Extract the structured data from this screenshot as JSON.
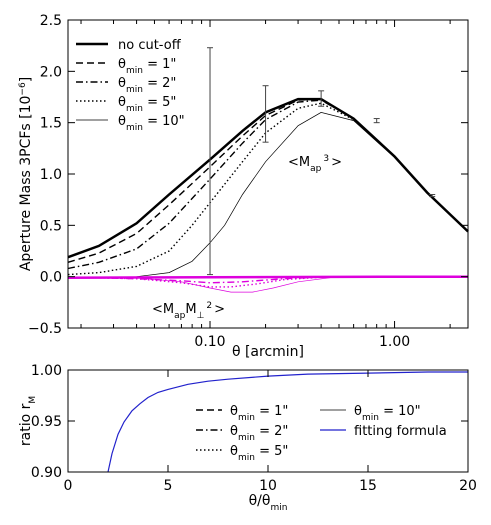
{
  "chart_data": [
    {
      "type": "line",
      "xlabel": "θ [arcmin]",
      "ylabel": "Aperture Mass 3PCFs [10",
      "ylabel_exp": "−6",
      "ylabel_end": "]",
      "xscale": "log",
      "xlim": [
        0.017,
        2.5
      ],
      "ylim": [
        -0.5,
        2.5
      ],
      "xticks": [
        {
          "v": 0.1,
          "label": "0.10"
        },
        {
          "v": 1.0,
          "label": "1.00"
        }
      ],
      "yticks": [
        {
          "v": -0.5,
          "label": "−0.5"
        },
        {
          "v": 0.0,
          "label": "0.0"
        },
        {
          "v": 0.5,
          "label": "0.5"
        },
        {
          "v": 1.0,
          "label": "1.0"
        },
        {
          "v": 1.5,
          "label": "1.5"
        },
        {
          "v": 2.0,
          "label": "2.0"
        },
        {
          "v": 2.5,
          "label": "2.5"
        }
      ],
      "legend_position": "top-left",
      "annotations": [
        {
          "base": "<M",
          "sub": "ap",
          "sup": "3",
          "end": ">"
        },
        {
          "base": "<M",
          "sub": "ap",
          "mid": "M",
          "sub2": "⊥",
          "sup": "2",
          "end": ">"
        }
      ],
      "series": [
        {
          "name": "no cut-off",
          "style": "solid-thick",
          "color": "#000000",
          "x": [
            0.017,
            0.025,
            0.04,
            0.06,
            0.1,
            0.15,
            0.2,
            0.3,
            0.4,
            0.6,
            1.0,
            1.5,
            2.5
          ],
          "y": [
            0.19,
            0.3,
            0.52,
            0.8,
            1.14,
            1.42,
            1.6,
            1.73,
            1.73,
            1.54,
            1.17,
            0.82,
            0.44
          ]
        },
        {
          "name": "θmin = 1\"",
          "label_main": "θ",
          "label_sub": "min",
          "label_val": " = 1\"",
          "style": "dashed",
          "color": "#000000",
          "x": [
            0.017,
            0.025,
            0.04,
            0.06,
            0.1,
            0.15,
            0.2,
            0.3,
            0.4,
            0.6,
            1.0,
            1.5,
            2.5
          ],
          "y": [
            0.14,
            0.23,
            0.42,
            0.7,
            1.07,
            1.37,
            1.57,
            1.72,
            1.73,
            1.54,
            1.17,
            0.82,
            0.44
          ]
        },
        {
          "name": "θmin = 2\"",
          "label_main": "θ",
          "label_sub": "min",
          "label_val": " = 2\"",
          "style": "dashdot",
          "color": "#000000",
          "x": [
            0.017,
            0.025,
            0.04,
            0.06,
            0.1,
            0.15,
            0.2,
            0.3,
            0.4,
            0.6,
            1.0,
            1.5,
            2.5
          ],
          "y": [
            0.08,
            0.14,
            0.27,
            0.52,
            0.95,
            1.3,
            1.53,
            1.7,
            1.72,
            1.54,
            1.17,
            0.82,
            0.44
          ]
        },
        {
          "name": "θmin = 5\"",
          "label_main": "θ",
          "label_sub": "min",
          "label_val": " = 5\"",
          "style": "dotted",
          "color": "#000000",
          "x": [
            0.017,
            0.025,
            0.04,
            0.06,
            0.08,
            0.1,
            0.15,
            0.2,
            0.3,
            0.4,
            0.6,
            1.0,
            1.5,
            2.5
          ],
          "y": [
            0.02,
            0.04,
            0.1,
            0.25,
            0.5,
            0.72,
            1.12,
            1.4,
            1.64,
            1.69,
            1.53,
            1.17,
            0.82,
            0.44
          ]
        },
        {
          "name": "θmin = 10\"",
          "label_main": "θ",
          "label_sub": "min",
          "label_val": " = 10\"",
          "style": "thin",
          "color": "#000000",
          "x": [
            0.04,
            0.06,
            0.08,
            0.1,
            0.12,
            0.15,
            0.2,
            0.3,
            0.4,
            0.6,
            1.0,
            1.5,
            2.5
          ],
          "y": [
            0.0,
            0.04,
            0.15,
            0.33,
            0.5,
            0.8,
            1.12,
            1.47,
            1.6,
            1.52,
            1.16,
            0.81,
            0.44
          ]
        },
        {
          "name": "<MapM⊥²> no cut-off",
          "style": "solid-thick",
          "color": "#dd00dd",
          "x": [
            0.017,
            0.1,
            1.0,
            2.5
          ],
          "y": [
            -0.01,
            -0.005,
            0.0,
            0.0
          ]
        },
        {
          "name": "<MapM⊥²> θmin = 2\"",
          "style": "dashdot",
          "color": "#dd00dd",
          "x": [
            0.017,
            0.04,
            0.07,
            0.1,
            0.15,
            0.25,
            0.4,
            1.0,
            2.5
          ],
          "y": [
            -0.005,
            -0.02,
            -0.04,
            -0.06,
            -0.05,
            -0.02,
            -0.005,
            0.0,
            0.0
          ]
        },
        {
          "name": "<MapM⊥²> θmin = 5\"",
          "style": "dotted",
          "color": "#dd00dd",
          "x": [
            0.017,
            0.04,
            0.07,
            0.1,
            0.13,
            0.18,
            0.25,
            0.4,
            1.0,
            2.5
          ],
          "y": [
            -0.005,
            -0.02,
            -0.06,
            -0.1,
            -0.1,
            -0.07,
            -0.03,
            -0.005,
            0.0,
            0.0
          ]
        },
        {
          "name": "<MapM⊥²> θmin = 10\"",
          "style": "thin",
          "color": "#dd00dd",
          "x": [
            0.04,
            0.07,
            0.1,
            0.13,
            0.17,
            0.22,
            0.3,
            0.45,
            1.0,
            2.5
          ],
          "y": [
            -0.01,
            -0.05,
            -0.11,
            -0.15,
            -0.15,
            -0.11,
            -0.05,
            -0.01,
            0.0,
            0.0
          ]
        }
      ],
      "errorbars": [
        {
          "x": 0.1,
          "ylo": 0.02,
          "yhi": 2.23
        },
        {
          "x": 0.2,
          "ylo": 1.31,
          "yhi": 1.86
        },
        {
          "x": 0.4,
          "ylo": 1.66,
          "yhi": 1.81
        },
        {
          "x": 0.8,
          "ylo": 1.5,
          "yhi": 1.54
        },
        {
          "x": 1.6,
          "ylo": 0.78,
          "yhi": 0.8
        }
      ]
    },
    {
      "type": "line",
      "xlabel": "θ/θ",
      "xlabel_sub": "min",
      "ylabel": "ratio r",
      "ylabel_sub": "M",
      "xlim": [
        0,
        20
      ],
      "ylim": [
        0.9,
        1.0
      ],
      "xticks": [
        {
          "v": 0,
          "label": "0"
        },
        {
          "v": 5,
          "label": "5"
        },
        {
          "v": 10,
          "label": "10"
        },
        {
          "v": 15,
          "label": "15"
        },
        {
          "v": 20,
          "label": "20"
        }
      ],
      "yticks": [
        {
          "v": 0.9,
          "label": "0.90"
        },
        {
          "v": 0.95,
          "label": "0.95"
        },
        {
          "v": 1.0,
          "label": "1.00"
        }
      ],
      "legend_position": "lower-right",
      "series": [
        {
          "name": "θmin = 1\"",
          "label_main": "θ",
          "label_sub": "min",
          "label_val": " = 1\"",
          "style": "dashed",
          "color": "#000000"
        },
        {
          "name": "θmin = 2\"",
          "label_main": "θ",
          "label_sub": "min",
          "label_val": " = 2\"",
          "style": "dashdot",
          "color": "#000000"
        },
        {
          "name": "θmin = 5\"",
          "label_main": "θ",
          "label_sub": "min",
          "label_val": " = 5\"",
          "style": "dotted",
          "color": "#000000"
        },
        {
          "name": "θmin = 10\"",
          "label_main": "θ",
          "label_sub": "min",
          "label_val": " = 10\"",
          "style": "thin",
          "color": "#000000"
        },
        {
          "name": "fitting formula",
          "label_main": "fitting formula",
          "style": "solid",
          "color": "#2222cc",
          "x": [
            2.0,
            2.2,
            2.5,
            2.8,
            3.2,
            3.6,
            4.0,
            4.5,
            5.0,
            6.0,
            7.0,
            8.0,
            10.0,
            12.0,
            15.0,
            18.0,
            20.0
          ],
          "y": [
            0.9,
            0.918,
            0.937,
            0.949,
            0.96,
            0.967,
            0.973,
            0.978,
            0.981,
            0.986,
            0.989,
            0.991,
            0.994,
            0.996,
            0.997,
            0.998,
            0.998
          ]
        }
      ]
    }
  ]
}
